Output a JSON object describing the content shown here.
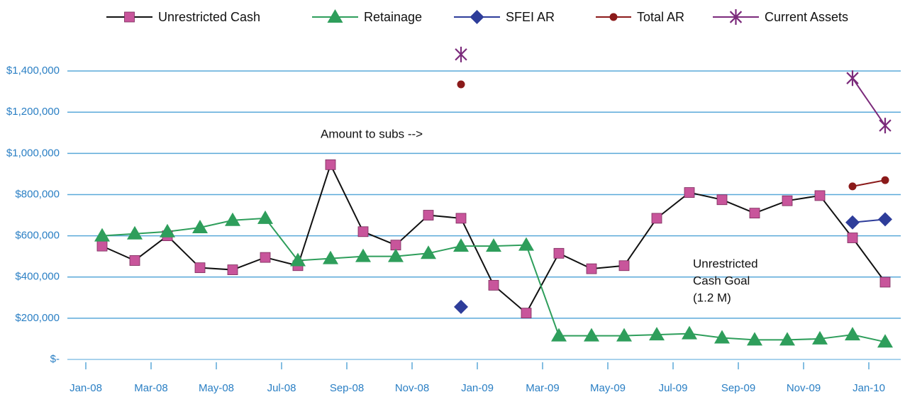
{
  "chart_data": {
    "type": "line",
    "categories": [
      "Jan-08",
      null,
      "Mar-08",
      null,
      "May-08",
      null,
      "Jul-08",
      null,
      "Sep-08",
      null,
      "Nov-08",
      null,
      "Jan-09",
      null,
      "Mar-09",
      null,
      "May-09",
      null,
      "Jul-09",
      null,
      "Sep-09",
      null,
      "Nov-09",
      null,
      "Jan-10"
    ],
    "series": [
      {
        "name": "Unrestricted Cash",
        "color": "#c8559b",
        "line_color": "#111111",
        "marker": "square",
        "values": [
          550000,
          480000,
          600000,
          445000,
          435000,
          495000,
          455000,
          945000,
          620000,
          555000,
          700000,
          685000,
          360000,
          225000,
          515000,
          440000,
          455000,
          685000,
          810000,
          775000,
          710000,
          770000,
          795000,
          590000,
          375000
        ]
      },
      {
        "name": "Retainage",
        "color": "#2e9e5b",
        "line_color": "#2e9e5b",
        "marker": "triangle",
        "values": [
          600000,
          610000,
          620000,
          640000,
          675000,
          685000,
          480000,
          490000,
          500000,
          500000,
          515000,
          550000,
          550000,
          555000,
          115000,
          115000,
          115000,
          120000,
          125000,
          105000,
          95000,
          95000,
          100000,
          120000,
          85000
        ]
      },
      {
        "name": "SFEI AR",
        "color": "#2e3d9a",
        "line_color": "#2e3d9a",
        "marker": "diamond",
        "values": [
          null,
          null,
          null,
          null,
          null,
          null,
          null,
          null,
          null,
          null,
          null,
          255000,
          null,
          null,
          null,
          null,
          null,
          null,
          null,
          null,
          null,
          null,
          null,
          665000,
          680000
        ]
      },
      {
        "name": "Total AR",
        "color": "#8b1a1a",
        "line_color": "#8b1a1a",
        "marker": "circle",
        "values": [
          null,
          null,
          null,
          null,
          null,
          null,
          null,
          null,
          null,
          null,
          null,
          1335000,
          null,
          null,
          null,
          null,
          null,
          null,
          null,
          null,
          null,
          null,
          null,
          840000,
          870000
        ]
      },
      {
        "name": "Current Assets",
        "color": "#7b2a7b",
        "line_color": "#7b2a7b",
        "marker": "star",
        "values": [
          null,
          null,
          null,
          null,
          null,
          null,
          null,
          null,
          null,
          null,
          null,
          1480000,
          null,
          null,
          null,
          null,
          null,
          null,
          null,
          null,
          null,
          null,
          null,
          1365000,
          1135000
        ]
      }
    ],
    "ylim": [
      0,
      1500000
    ],
    "yticks": [
      {
        "value": 0,
        "label": "$-"
      },
      {
        "value": 200000,
        "label": "$200,000"
      },
      {
        "value": 400000,
        "label": "$400,000"
      },
      {
        "value": 600000,
        "label": "$600,000"
      },
      {
        "value": 800000,
        "label": "$800,000"
      },
      {
        "value": 1000000,
        "label": "$1,000,000"
      },
      {
        "value": 1200000,
        "label": "$1,200,000"
      },
      {
        "value": 1400000,
        "label": "$1,400,000"
      }
    ],
    "grid": true,
    "legend": "top",
    "annotations": [
      {
        "lines": [
          "Amount to subs -->"
        ]
      },
      {
        "lines": [
          "Unrestricted",
          "Cash Goal",
          "(1.2 M)"
        ]
      }
    ]
  }
}
